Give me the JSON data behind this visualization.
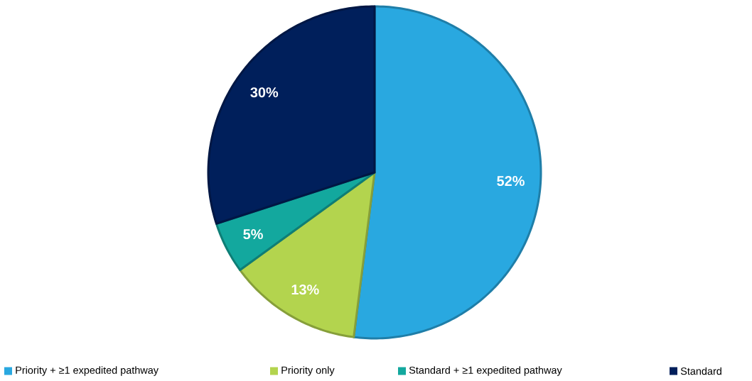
{
  "chart_data": {
    "type": "pie",
    "categories": [
      "Priority + ≥1 expedited pathway",
      "Priority only",
      "Standard + ≥1 expedited pathway",
      "Standard"
    ],
    "values": [
      52,
      13,
      5,
      30
    ],
    "colors": [
      "#29a8e0",
      "#b3d44e",
      "#13a89e",
      "#001f5b"
    ],
    "value_labels": [
      "52%",
      "13%",
      "5%",
      "30%"
    ],
    "legend": "bottom"
  }
}
